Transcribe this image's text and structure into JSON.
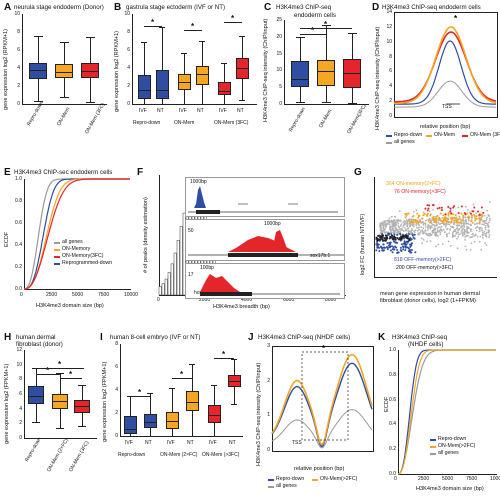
{
  "colors": {
    "repro": "#2f4ea2",
    "on": "#f5a623",
    "on3": "#e4262b",
    "gray": "#9a9a9a",
    "allgenes": "#9a9a9a",
    "dark": "#222222"
  },
  "A": {
    "label": "A",
    "title": "neurula stage endoderm (Donor)",
    "ylabel": "gene expression log2 (RPKM+1)",
    "yticks": [
      "0",
      "2",
      "4",
      "6",
      "8",
      "10"
    ],
    "cats": [
      "Repro-down",
      "ON-Mem",
      "ON-Mem (3FC)"
    ],
    "chart_data": {
      "type": "box",
      "categories": [
        "Repro-down",
        "ON-Mem",
        "ON-Mem (3FC)"
      ],
      "ylim": [
        0,
        10
      ],
      "boxes": [
        {
          "q1": 2.8,
          "med": 3.8,
          "q3": 4.6,
          "lo": 0.3,
          "hi": 7.6
        },
        {
          "q1": 2.9,
          "med": 3.6,
          "q3": 4.4,
          "lo": 0.8,
          "hi": 6.9
        },
        {
          "q1": 2.9,
          "med": 3.7,
          "q3": 4.6,
          "lo": 0.2,
          "hi": 7.5
        }
      ]
    }
  },
  "B": {
    "label": "B",
    "title": "gastrula stage ectoderm (IVF or NT)",
    "ylabel": "gene expression log2 (RPKM+1)",
    "yticks": [
      "0",
      "2",
      "4",
      "6",
      "8",
      "10"
    ],
    "xticks": [
      "IVF",
      "NT",
      "IVF",
      "NT",
      "IVF",
      "NT"
    ],
    "groups": [
      "Repro-down",
      "ON-Mem",
      "ON-Mem (3FC)"
    ],
    "sig": "*",
    "chart_data": {
      "type": "box",
      "ylim": [
        0,
        10
      ],
      "boxes": [
        {
          "q1": 0.6,
          "med": 1.6,
          "q3": 3.2,
          "lo": 0,
          "hi": 6.9
        },
        {
          "q1": 0.6,
          "med": 1.6,
          "q3": 3.8,
          "lo": 0,
          "hi": 8.6
        },
        {
          "q1": 1.5,
          "med": 2.5,
          "q3": 3.3,
          "lo": 0,
          "hi": 5.7
        },
        {
          "q1": 2.1,
          "med": 3.3,
          "q3": 4.2,
          "lo": 0,
          "hi": 7
        },
        {
          "q1": 1.0,
          "med": 1.5,
          "q3": 2.4,
          "lo": 0,
          "hi": 4.6
        },
        {
          "q1": 2.8,
          "med": 4.0,
          "q3": 5.1,
          "lo": 0.4,
          "hi": 7.6
        }
      ]
    }
  },
  "C": {
    "label": "C",
    "title": "H3K4me3 ChIP-seq",
    "subtitle": "endoderm cells",
    "ylabel": "H3K4me3 ChIP-seq intensity (ChIP/input)",
    "yticks": [
      "0",
      "5",
      "10",
      "15",
      "20",
      "25"
    ],
    "cats": [
      "Repro-down",
      "ON-Mem",
      "ON-Mem(3FC)"
    ],
    "sig": "*",
    "chart_data": {
      "type": "box",
      "ylim": [
        0,
        25
      ],
      "boxes": [
        {
          "q1": 5,
          "med": 7.3,
          "q3": 12.7,
          "lo": 0.5,
          "hi": 20
        },
        {
          "q1": 5.4,
          "med": 9.7,
          "q3": 13.2,
          "lo": 0.7,
          "hi": 23.5
        },
        {
          "q1": 4.9,
          "med": 9.2,
          "q3": 13.3,
          "lo": 0.4,
          "hi": 21
        }
      ]
    }
  },
  "D": {
    "label": "D",
    "title": "H3K4me3 ChIP-seq endoderm cells",
    "ylabel": "H3K4me3 ChIP-seq intensity (ChIP/input)",
    "xlabel": "relative position (bp)",
    "yticks": [
      "0",
      "2",
      "4",
      "6",
      "8",
      "10",
      "12",
      "14"
    ],
    "xticks": [
      "-2000",
      "0",
      "2000"
    ],
    "tss": "TSS",
    "sig": "*",
    "legend": [
      "Repro-down",
      "ON-Mem",
      "ON-Mem (3FC)",
      "all genes"
    ]
  },
  "E": {
    "label": "E",
    "title": "H3K4me3 ChIP-sec endoderm cells",
    "ylabel": "ECDF",
    "xlabel": "H3K4me3 domain size (bp)",
    "yticks": [
      "0.0",
      "0.2",
      "0.4",
      "0.6",
      "0.8",
      "1.0"
    ],
    "xticks": [
      "0",
      "2500",
      "5000",
      "7500",
      "10000"
    ],
    "legend": [
      "all genes",
      "ON-Memory",
      "ON-Memory(3FC)",
      "Reprogrammed-down"
    ]
  },
  "F": {
    "label": "F",
    "ylabel": "# of peaks (density estimation)",
    "xlabel": "H3K4me3 breadth (bp)",
    "xticks": [
      "0",
      "2000",
      "4000",
      "6000",
      "8000"
    ],
    "insets": [
      {
        "scale": "1000bp",
        "val": "24"
      },
      {
        "scale": "1000bp",
        "val": "50"
      },
      {
        "scale": "100bp",
        "val": "17"
      }
    ],
    "genes": [
      "hsp9",
      "sox17b.1",
      "hoxb1"
    ]
  },
  "G": {
    "label": "G",
    "ylabel": "log2 FC (human NT/IVF)",
    "xlabel": "mean gene expression in human dermal fibroblast (donor cells), log2 (1+FPKM)",
    "ann": [
      "364 ON-memory(2×FC)",
      "76 ON-memory(>3FC)",
      "818 OFF-memory(>2FC)",
      "200 OFF-memory(>3FC)"
    ],
    "yticks": [
      "-5",
      "0",
      "5"
    ],
    "xticks": [
      "0",
      "5",
      "10",
      "15"
    ]
  },
  "H": {
    "label": "H",
    "title": "human dermal",
    "subtitle": "fibroblast (donor)",
    "ylabel": "gene expression log2 (FPKM+1)",
    "yticks": [
      "0",
      "2",
      "4",
      "6",
      "8",
      "10",
      "12"
    ],
    "cats": [
      "Repro-down",
      "ON-Mem (2×FC)",
      "ON-Mem (3FC)"
    ],
    "sig": "*",
    "chart_data": {
      "type": "box",
      "ylim": [
        0,
        12
      ],
      "boxes": [
        {
          "q1": 4.6,
          "med": 5.7,
          "q3": 7.1,
          "lo": 2.2,
          "hi": 9.6
        },
        {
          "q1": 3.9,
          "med": 5.0,
          "q3": 6.0,
          "lo": 1.3,
          "hi": 8.8
        },
        {
          "q1": 3.4,
          "med": 4.3,
          "q3": 5.2,
          "lo": 1.6,
          "hi": 7.2
        }
      ]
    }
  },
  "I": {
    "label": "I",
    "title": "human 8-cell embryo (IVF or NT)",
    "ylabel": "gene expression log2 (FPKM+1)",
    "yticks": [
      "0",
      "2",
      "4",
      "6",
      "8"
    ],
    "xticks": [
      "IVF",
      "NT",
      "IVF",
      "NT",
      "IVF",
      "NT"
    ],
    "groups": [
      "Repro-down",
      "ON-Mem (2×FC)",
      "ON-Mem (>3FC)"
    ],
    "sig": "*",
    "chart_data": {
      "type": "box",
      "ylim": [
        0,
        8
      ],
      "boxes": [
        {
          "q1": 0.2,
          "med": 0.6,
          "q3": 1.7,
          "lo": 0,
          "hi": 3.5
        },
        {
          "q1": 0.7,
          "med": 1.2,
          "q3": 1.9,
          "lo": 0,
          "hi": 3.7
        },
        {
          "q1": 0.6,
          "med": 1.3,
          "q3": 2.1,
          "lo": 0,
          "hi": 4.2
        },
        {
          "q1": 2.2,
          "med": 3.0,
          "q3": 3.9,
          "lo": 0,
          "hi": 6.3
        },
        {
          "q1": 1.1,
          "med": 1.8,
          "q3": 2.7,
          "lo": 0,
          "hi": 4.4
        },
        {
          "q1": 4.3,
          "med": 4.8,
          "q3": 5.3,
          "lo": 2.8,
          "hi": 6.7
        }
      ]
    }
  },
  "J": {
    "label": "J",
    "title": "H3K4me3 ChIP-seq (NHDF cells)",
    "ylabel": "H3K4me3 ChIP-seq intensity (ChIP/input)",
    "xlabel": "relative position (bp)",
    "xticks": [
      "-1000",
      "-500",
      "0",
      "500",
      "1000"
    ],
    "yticks": [
      "0",
      "1",
      "2",
      "3"
    ],
    "tss": "TSS",
    "sig": "*",
    "legend": [
      "Repro-down",
      "ON-Mem(>2FC)",
      "all genes"
    ]
  },
  "K": {
    "label": "K",
    "title": "H3K4me3 ChIP-seq",
    "subtitle": "(NHDF cells)",
    "ylabel": "ECDF",
    "xlabel": "H3K4me3 domain size (bp)",
    "xticks": [
      "0",
      "2500",
      "5000",
      "7500",
      "10000"
    ],
    "yticks": [
      "0.0",
      "0.2",
      "0.4",
      "0.6",
      "0.8",
      "1.0"
    ],
    "legend": [
      "Repro-down",
      "ON-Mem(>2FC)",
      "all genes"
    ]
  }
}
